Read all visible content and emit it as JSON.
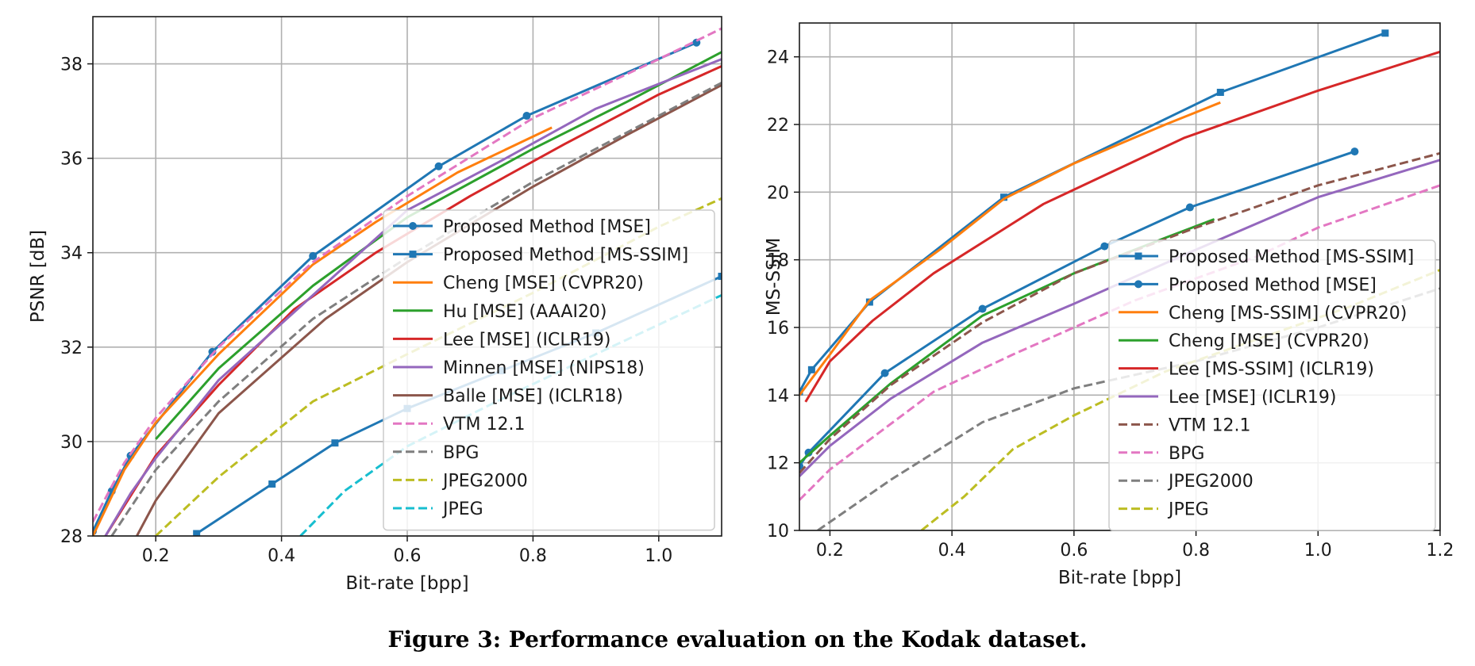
{
  "caption": "Figure 3: Performance evaluation on the Kodak dataset.",
  "chart_data": [
    {
      "type": "line",
      "xlabel": "Bit-rate [bpp]",
      "ylabel": "PSNR [dB]",
      "xlim": [
        0.1,
        1.1
      ],
      "ylim": [
        28,
        39
      ],
      "xticks": [
        0.2,
        0.4,
        0.6,
        0.8,
        1.0
      ],
      "yticks": [
        28,
        30,
        32,
        34,
        36,
        38
      ],
      "grid": true,
      "legend_position": "right",
      "series": [
        {
          "name": "Proposed Method [MSE]",
          "color": "#1f77b4",
          "dash": "solid",
          "marker": "circle",
          "points": [
            [
              0.1,
              28.1
            ],
            [
              0.13,
              28.95
            ],
            [
              0.16,
              29.7
            ],
            [
              0.29,
              31.9
            ],
            [
              0.45,
              33.93
            ],
            [
              0.65,
              35.83
            ],
            [
              0.79,
              36.9
            ],
            [
              1.06,
              38.45
            ]
          ]
        },
        {
          "name": "Proposed Method [MS-SSIM]",
          "color": "#1f77b4",
          "dash": "solid",
          "marker": "square",
          "points": [
            [
              0.265,
              28.05
            ],
            [
              0.385,
              29.1
            ],
            [
              0.485,
              29.97
            ],
            [
              0.6,
              30.7
            ],
            [
              0.75,
              31.5
            ],
            [
              0.9,
              32.3
            ],
            [
              1.1,
              33.5
            ]
          ]
        },
        {
          "name": "Cheng [MSE] (CVPR20)",
          "color": "#ff7f0e",
          "dash": "solid",
          "marker": "none",
          "points": [
            [
              0.1,
              28.0
            ],
            [
              0.15,
              29.4
            ],
            [
              0.2,
              30.4
            ],
            [
              0.3,
              31.85
            ],
            [
              0.45,
              33.75
            ],
            [
              0.55,
              34.65
            ],
            [
              0.68,
              35.7
            ],
            [
              0.83,
              36.65
            ]
          ]
        },
        {
          "name": "Hu [MSE] (AAAI20)",
          "color": "#2ca02c",
          "dash": "solid",
          "marker": "none",
          "points": [
            [
              0.2,
              30.05
            ],
            [
              0.3,
              31.55
            ],
            [
              0.45,
              33.3
            ],
            [
              0.6,
              34.75
            ],
            [
              0.8,
              36.2
            ],
            [
              0.95,
              37.2
            ],
            [
              1.1,
              38.25
            ]
          ]
        },
        {
          "name": "Lee [MSE] (ICLR19)",
          "color": "#d62728",
          "dash": "solid",
          "marker": "none",
          "points": [
            [
              0.12,
              28.0
            ],
            [
              0.2,
              29.7
            ],
            [
              0.3,
              31.2
            ],
            [
              0.42,
              32.8
            ],
            [
              0.55,
              34.0
            ],
            [
              0.7,
              35.2
            ],
            [
              0.85,
              36.3
            ],
            [
              1.0,
              37.35
            ],
            [
              1.1,
              37.95
            ]
          ]
        },
        {
          "name": "Minnen [MSE] (NIPS18)",
          "color": "#9467bd",
          "dash": "solid",
          "marker": "none",
          "points": [
            [
              0.12,
              28.0
            ],
            [
              0.16,
              28.9
            ],
            [
              0.2,
              29.65
            ],
            [
              0.3,
              31.3
            ],
            [
              0.45,
              33.1
            ],
            [
              0.6,
              34.9
            ],
            [
              0.75,
              35.95
            ],
            [
              0.9,
              37.05
            ],
            [
              1.1,
              38.1
            ]
          ]
        },
        {
          "name": "Balle [MSE] (ICLR18)",
          "color": "#8c564b",
          "dash": "solid",
          "marker": "none",
          "points": [
            [
              0.17,
              28.0
            ],
            [
              0.2,
              28.75
            ],
            [
              0.3,
              30.6
            ],
            [
              0.47,
              32.6
            ],
            [
              0.6,
              33.8
            ],
            [
              0.8,
              35.4
            ],
            [
              0.95,
              36.5
            ],
            [
              1.1,
              37.55
            ]
          ]
        },
        {
          "name": "VTM 12.1",
          "color": "#e377c2",
          "dash": "dashed",
          "marker": "none",
          "points": [
            [
              0.1,
              28.3
            ],
            [
              0.15,
              29.55
            ],
            [
              0.2,
              30.5
            ],
            [
              0.3,
              32.0
            ],
            [
              0.45,
              33.8
            ],
            [
              0.6,
              35.2
            ],
            [
              0.8,
              36.85
            ],
            [
              1.0,
              38.1
            ],
            [
              1.1,
              38.75
            ]
          ]
        },
        {
          "name": "BPG",
          "color": "#7f7f7f",
          "dash": "dashed",
          "marker": "none",
          "points": [
            [
              0.13,
              28.0
            ],
            [
              0.16,
              28.6
            ],
            [
              0.2,
              29.4
            ],
            [
              0.3,
              30.85
            ],
            [
              0.45,
              32.6
            ],
            [
              0.6,
              33.9
            ],
            [
              0.8,
              35.5
            ],
            [
              1.0,
              36.9
            ],
            [
              1.1,
              37.6
            ]
          ]
        },
        {
          "name": "JPEG2000",
          "color": "#bcbd22",
          "dash": "dashed",
          "marker": "none",
          "points": [
            [
              0.2,
              28.0
            ],
            [
              0.3,
              29.25
            ],
            [
              0.45,
              30.85
            ],
            [
              0.6,
              31.85
            ],
            [
              0.8,
              33.15
            ],
            [
              1.0,
              34.55
            ],
            [
              1.1,
              35.15
            ]
          ]
        },
        {
          "name": "JPEG",
          "color": "#17becf",
          "dash": "dashed",
          "marker": "none",
          "points": [
            [
              0.43,
              28.0
            ],
            [
              0.5,
              28.95
            ],
            [
              0.6,
              29.9
            ],
            [
              0.75,
              30.9
            ],
            [
              0.9,
              31.85
            ],
            [
              1.1,
              33.1
            ]
          ]
        }
      ]
    },
    {
      "type": "line",
      "xlabel": "Bit-rate [bpp]",
      "ylabel": "MS-SSIM",
      "xlim": [
        0.15,
        1.2
      ],
      "ylim": [
        10,
        25
      ],
      "xticks": [
        0.2,
        0.4,
        0.6,
        0.8,
        1.0,
        1.2
      ],
      "yticks": [
        10,
        12,
        14,
        16,
        18,
        20,
        22,
        24
      ],
      "grid": true,
      "legend_position": "lower-right",
      "series": [
        {
          "name": "Proposed Method [MS-SSIM]",
          "color": "#1f77b4",
          "dash": "solid",
          "marker": "square",
          "points": [
            [
              0.15,
              14.1
            ],
            [
              0.17,
              14.75
            ],
            [
              0.265,
              16.75
            ],
            [
              0.485,
              19.85
            ],
            [
              0.84,
              22.95
            ],
            [
              1.11,
              24.7
            ]
          ]
        },
        {
          "name": "Proposed Method [MSE]",
          "color": "#1f77b4",
          "dash": "solid",
          "marker": "circle",
          "points": [
            [
              0.15,
              11.9
            ],
            [
              0.165,
              12.3
            ],
            [
              0.29,
              14.65
            ],
            [
              0.45,
              16.55
            ],
            [
              0.65,
              18.4
            ],
            [
              0.79,
              19.55
            ],
            [
              1.06,
              21.2
            ]
          ]
        },
        {
          "name": "Cheng [MS-SSIM] (CVPR20)",
          "color": "#ff7f0e",
          "dash": "solid",
          "marker": "none",
          "points": [
            [
              0.15,
              14.0
            ],
            [
              0.2,
              15.2
            ],
            [
              0.265,
              16.8
            ],
            [
              0.38,
              18.3
            ],
            [
              0.485,
              19.8
            ],
            [
              0.6,
              20.85
            ],
            [
              0.75,
              22.0
            ],
            [
              0.84,
              22.65
            ]
          ]
        },
        {
          "name": "Cheng [MSE] (CVPR20)",
          "color": "#2ca02c",
          "dash": "solid",
          "marker": "none",
          "points": [
            [
              0.15,
              12.0
            ],
            [
              0.2,
              12.8
            ],
            [
              0.3,
              14.35
            ],
            [
              0.45,
              16.35
            ],
            [
              0.6,
              17.6
            ],
            [
              0.75,
              18.65
            ],
            [
              0.83,
              19.2
            ]
          ]
        },
        {
          "name": "Lee [MS-SSIM] (ICLR19)",
          "color": "#d62728",
          "dash": "solid",
          "marker": "none",
          "points": [
            [
              0.16,
              13.8
            ],
            [
              0.2,
              15.0
            ],
            [
              0.27,
              16.2
            ],
            [
              0.37,
              17.6
            ],
            [
              0.55,
              19.65
            ],
            [
              0.78,
              21.6
            ],
            [
              1.0,
              23.0
            ],
            [
              1.2,
              24.15
            ]
          ]
        },
        {
          "name": "Lee [MSE] (ICLR19)",
          "color": "#9467bd",
          "dash": "solid",
          "marker": "none",
          "points": [
            [
              0.15,
              11.6
            ],
            [
              0.2,
              12.5
            ],
            [
              0.3,
              13.9
            ],
            [
              0.45,
              15.55
            ],
            [
              0.6,
              16.7
            ],
            [
              0.8,
              18.3
            ],
            [
              1.0,
              19.85
            ],
            [
              1.2,
              20.95
            ]
          ]
        },
        {
          "name": "VTM 12.1",
          "color": "#8c564b",
          "dash": "dashed",
          "marker": "none",
          "points": [
            [
              0.15,
              11.7
            ],
            [
              0.2,
              12.7
            ],
            [
              0.3,
              14.3
            ],
            [
              0.45,
              16.15
            ],
            [
              0.6,
              17.6
            ],
            [
              0.8,
              18.95
            ],
            [
              1.0,
              20.2
            ],
            [
              1.2,
              21.15
            ]
          ]
        },
        {
          "name": "BPG",
          "color": "#e377c2",
          "dash": "dashed",
          "marker": "none",
          "points": [
            [
              0.15,
              10.9
            ],
            [
              0.2,
              11.8
            ],
            [
              0.37,
              14.1
            ],
            [
              0.5,
              15.2
            ],
            [
              0.7,
              16.8
            ],
            [
              0.9,
              18.1
            ],
            [
              1.0,
              18.95
            ],
            [
              1.2,
              20.2
            ]
          ]
        },
        {
          "name": "JPEG2000",
          "color": "#7f7f7f",
          "dash": "dashed",
          "marker": "none",
          "points": [
            [
              0.18,
              10.0
            ],
            [
              0.3,
              11.5
            ],
            [
              0.45,
              13.2
            ],
            [
              0.6,
              14.2
            ],
            [
              0.8,
              15.0
            ],
            [
              1.0,
              16.0
            ],
            [
              1.2,
              17.15
            ]
          ]
        },
        {
          "name": "JPEG",
          "color": "#bcbd22",
          "dash": "dashed",
          "marker": "none",
          "points": [
            [
              0.35,
              10.0
            ],
            [
              0.42,
              11.0
            ],
            [
              0.5,
              12.4
            ],
            [
              0.6,
              13.4
            ],
            [
              0.75,
              14.7
            ],
            [
              0.9,
              15.65
            ],
            [
              1.05,
              16.6
            ],
            [
              1.2,
              17.7
            ]
          ]
        }
      ]
    }
  ]
}
